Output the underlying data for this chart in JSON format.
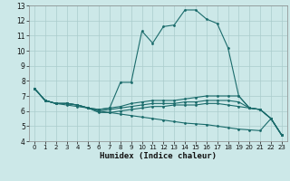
{
  "xlabel": "Humidex (Indice chaleur)",
  "bg_color": "#cce8e8",
  "line_color": "#1a6b6b",
  "grid_color": "#aacccc",
  "xlim": [
    -0.5,
    23.5
  ],
  "ylim": [
    4,
    13
  ],
  "xticks": [
    0,
    1,
    2,
    3,
    4,
    5,
    6,
    7,
    8,
    9,
    10,
    11,
    12,
    13,
    14,
    15,
    16,
    17,
    18,
    19,
    20,
    21,
    22,
    23
  ],
  "yticks": [
    4,
    5,
    6,
    7,
    8,
    9,
    10,
    11,
    12,
    13
  ],
  "lines": [
    {
      "x": [
        0,
        1,
        2,
        3,
        4,
        5,
        6,
        7,
        8,
        9,
        10,
        11,
        12,
        13,
        14,
        15,
        16,
        17,
        18,
        19,
        20,
        21,
        22,
        23
      ],
      "y": [
        7.5,
        6.7,
        6.5,
        6.5,
        6.4,
        6.2,
        6.1,
        6.2,
        7.9,
        7.9,
        11.3,
        10.5,
        11.6,
        11.7,
        12.7,
        12.7,
        12.1,
        11.8,
        10.2,
        7.0,
        6.2,
        6.1,
        5.5,
        4.4
      ]
    },
    {
      "x": [
        0,
        1,
        2,
        3,
        4,
        5,
        6,
        7,
        8,
        9,
        10,
        11,
        12,
        13,
        14,
        15,
        16,
        17,
        18,
        19,
        20,
        21,
        22,
        23
      ],
      "y": [
        7.5,
        6.7,
        6.5,
        6.5,
        6.4,
        6.2,
        6.1,
        6.2,
        6.3,
        6.5,
        6.6,
        6.7,
        6.7,
        6.7,
        6.8,
        6.9,
        7.0,
        7.0,
        7.0,
        7.0,
        6.2,
        6.1,
        5.5,
        4.4
      ]
    },
    {
      "x": [
        0,
        1,
        2,
        3,
        4,
        5,
        6,
        7,
        8,
        9,
        10,
        11,
        12,
        13,
        14,
        15,
        16,
        17,
        18,
        19,
        20,
        21,
        22,
        23
      ],
      "y": [
        7.5,
        6.7,
        6.5,
        6.5,
        6.4,
        6.2,
        6.0,
        6.1,
        6.2,
        6.3,
        6.4,
        6.5,
        6.5,
        6.5,
        6.6,
        6.6,
        6.7,
        6.7,
        6.7,
        6.6,
        6.2,
        6.1,
        5.5,
        4.4
      ]
    },
    {
      "x": [
        0,
        1,
        2,
        3,
        4,
        5,
        6,
        7,
        8,
        9,
        10,
        11,
        12,
        13,
        14,
        15,
        16,
        17,
        18,
        19,
        20,
        21,
        22,
        23
      ],
      "y": [
        7.5,
        6.7,
        6.5,
        6.5,
        6.4,
        6.2,
        5.9,
        5.9,
        6.0,
        6.1,
        6.2,
        6.3,
        6.3,
        6.4,
        6.4,
        6.4,
        6.5,
        6.5,
        6.4,
        6.3,
        6.2,
        6.1,
        5.5,
        4.4
      ]
    },
    {
      "x": [
        0,
        1,
        2,
        3,
        4,
        5,
        6,
        7,
        8,
        9,
        10,
        11,
        12,
        13,
        14,
        15,
        16,
        17,
        18,
        19,
        20,
        21,
        22,
        23
      ],
      "y": [
        7.5,
        6.7,
        6.5,
        6.4,
        6.3,
        6.2,
        6.0,
        5.9,
        5.8,
        5.7,
        5.6,
        5.5,
        5.4,
        5.3,
        5.2,
        5.15,
        5.1,
        5.0,
        4.9,
        4.8,
        4.75,
        4.7,
        5.5,
        4.4
      ]
    }
  ]
}
